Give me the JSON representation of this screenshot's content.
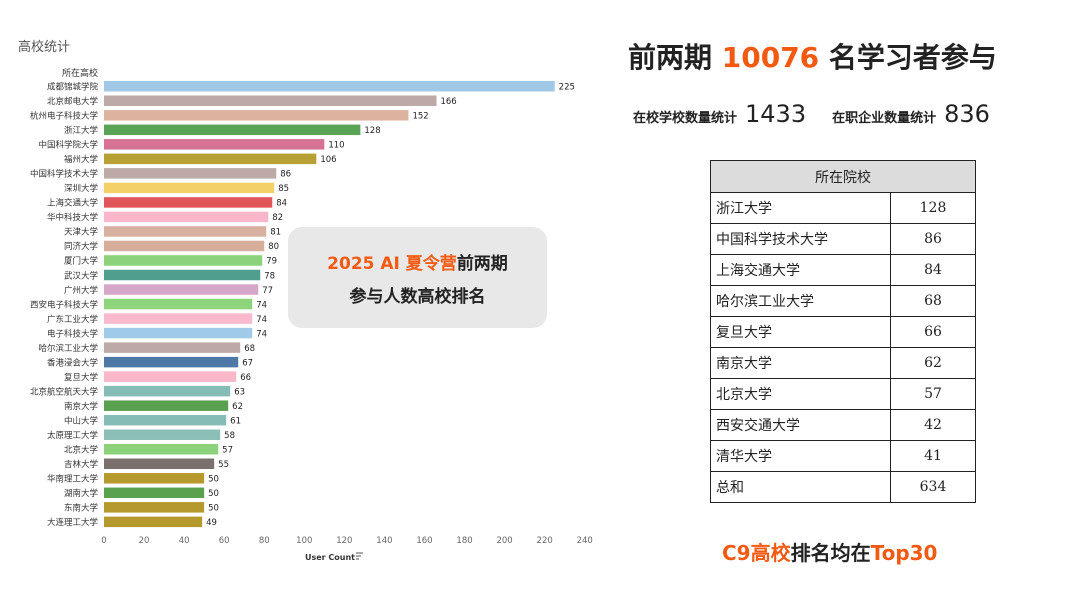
{
  "chart_data": {
    "type": "bar",
    "orientation": "horizontal",
    "title": "高校统计",
    "category_header": "所在高校",
    "xlabel": "User Count",
    "xlim": [
      0,
      240
    ],
    "xticks": [
      0,
      20,
      40,
      60,
      80,
      100,
      120,
      140,
      160,
      180,
      200,
      220,
      240
    ],
    "grid": false,
    "categories": [
      "成都锦城学院",
      "北京邮电大学",
      "杭州电子科技大学",
      "浙江大学",
      "中国科学院大学",
      "福州大学",
      "中国科学技术大学",
      "深圳大学",
      "上海交通大学",
      "华中科技大学",
      "天津大学",
      "同济大学",
      "厦门大学",
      "武汉大学",
      "广州大学",
      "西安电子科技大学",
      "广东工业大学",
      "电子科技大学",
      "哈尔滨工业大学",
      "香港浸会大学",
      "复旦大学",
      "北京航空航天大学",
      "南京大学",
      "中山大学",
      "太原理工大学",
      "北京大学",
      "吉林大学",
      "华南理工大学",
      "湖南大学",
      "东南大学",
      "大连理工大学"
    ],
    "values": [
      225,
      166,
      152,
      128,
      110,
      106,
      86,
      85,
      84,
      82,
      81,
      80,
      79,
      78,
      77,
      74,
      74,
      74,
      68,
      67,
      66,
      63,
      62,
      61,
      58,
      57,
      55,
      50,
      50,
      50,
      49
    ],
    "colors": [
      "#a0c8e6",
      "#bda9a6",
      "#dcb39e",
      "#5aa356",
      "#d67395",
      "#b7a034",
      "#bdaaa6",
      "#f4d166",
      "#e15759",
      "#f9b6ca",
      "#d8b0a0",
      "#d7ae9b",
      "#8bd27b",
      "#4f9e8e",
      "#d4a6c8",
      "#8dd47c",
      "#f9b9cc",
      "#9fcbe8",
      "#bdaaa7",
      "#4e79a7",
      "#f9b7c9",
      "#86bcb6",
      "#59a14f",
      "#86bcb6",
      "#8cbfb8",
      "#8bd27b",
      "#79706e",
      "#b6992d",
      "#59a14f",
      "#b6992d",
      "#b6992d"
    ]
  },
  "overlay": {
    "line1_orange": "2025 AI 夏令营",
    "line1_rest": "前两期",
    "line2": "参与人数高校排名"
  },
  "headline": {
    "prefix": "前两期 ",
    "number": "10076",
    "suffix": " 名学习者参与"
  },
  "stats": {
    "school_label": "在校学校数量统计",
    "school_value": "1433",
    "company_label": "在职企业数量统计",
    "company_value": "836"
  },
  "table": {
    "header": "所在院校",
    "rows": [
      {
        "name": "浙江大学",
        "value": "128"
      },
      {
        "name": "中国科学技术大学",
        "value": "86"
      },
      {
        "name": "上海交通大学",
        "value": "84"
      },
      {
        "name": "哈尔滨工业大学",
        "value": "68"
      },
      {
        "name": "复旦大学",
        "value": "66"
      },
      {
        "name": "南京大学",
        "value": "62"
      },
      {
        "name": "北京大学",
        "value": "57"
      },
      {
        "name": "西安交通大学",
        "value": "42"
      },
      {
        "name": "清华大学",
        "value": "41"
      },
      {
        "name": "总和",
        "value": "634"
      }
    ]
  },
  "footer": {
    "orange_part": "C9高校",
    "mid_part": "排名均在",
    "orange_end": "Top30"
  },
  "icons": {
    "sort": "sort-icon"
  }
}
